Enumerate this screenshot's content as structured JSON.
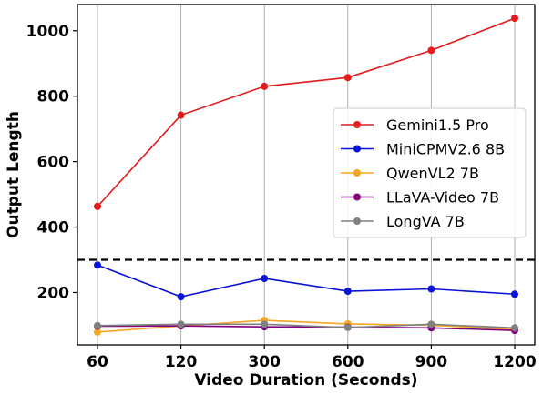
{
  "chart_data": {
    "type": "line",
    "title": "",
    "xlabel": "Video Duration (Seconds)",
    "ylabel": "Output Length",
    "categories": [
      "60",
      "120",
      "300",
      "600",
      "900",
      "1200"
    ],
    "ylim": [
      40,
      1080
    ],
    "yticks": [
      200,
      400,
      600,
      800,
      1000
    ],
    "grid": "vertical",
    "legend_position": "right",
    "reference_line": {
      "y": 300,
      "style": "dashed",
      "color": "#000000"
    },
    "series": [
      {
        "name": "Gemini1.5 Pro",
        "color": "#e41a1c",
        "values": [
          463,
          742,
          830,
          857,
          940,
          1038
        ]
      },
      {
        "name": "MiniCPMV2.6 8B",
        "color": "#0a14d6",
        "values": [
          284,
          187,
          243,
          204,
          211,
          195
        ]
      },
      {
        "name": "QwenVL2 7B",
        "color": "#f5a623",
        "values": [
          79,
          98,
          115,
          104,
          100,
          87
        ]
      },
      {
        "name": "LLaVA-Video 7B",
        "color": "#800080",
        "values": [
          97,
          98,
          95,
          94,
          92,
          84
        ]
      },
      {
        "name": "LongVA 7B",
        "color": "#808080",
        "values": [
          99,
          103,
          103,
          93,
          103,
          92
        ]
      }
    ]
  }
}
